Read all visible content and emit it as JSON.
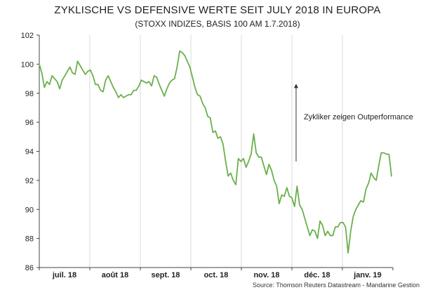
{
  "chart_data": {
    "type": "line",
    "title": "ZYKLISCHE VS DEFENSIVE WERTE SEIT JULY 2018 IN EUROPA",
    "subtitle": "(STOXX INDIZES, BASIS 100 AM 1.7.2018)",
    "source": "Source: Thomson Reuters Datastream - Mandarine Gestion",
    "annotation": "Zykliker zeigen Outperformance",
    "ylim": [
      86,
      102
    ],
    "yticks": [
      "86",
      "88",
      "90",
      "92",
      "94",
      "96",
      "98",
      "100",
      "102"
    ],
    "xlabels": [
      "juil. 18",
      "août 18",
      "sept. 18",
      "oct. 18",
      "nov. 18",
      "déc. 18",
      "janv. 19"
    ],
    "grid": "vertical",
    "line_color": "#6ab04c",
    "series": [
      {
        "values": [
          100.0,
          99.4,
          98.4,
          98.8,
          98.6,
          99.2,
          99.0,
          98.8,
          98.3,
          98.9,
          99.2,
          99.5,
          99.8,
          99.4,
          99.3,
          100.2,
          99.9,
          99.6,
          99.3,
          99.5,
          99.6,
          99.2,
          98.6,
          98.6,
          98.2,
          98.1,
          98.9,
          99.2,
          98.8,
          98.4,
          98.1,
          97.7,
          97.9,
          97.7,
          97.8,
          97.9,
          97.9,
          98.2,
          98.2,
          98.5,
          98.9,
          98.8,
          98.7,
          98.8,
          98.5,
          99.2,
          99.1,
          98.6,
          98.2,
          97.8,
          98.3,
          98.7,
          98.9,
          99.0,
          99.8,
          100.9,
          100.8,
          100.6,
          100.2,
          99.8,
          99.1,
          98.4,
          97.9,
          97.8,
          97.3,
          97.0,
          96.4,
          96.3,
          95.3,
          95.4,
          94.9,
          95.0,
          94.5,
          93.3,
          92.3,
          92.5,
          92.0,
          91.7,
          93.5,
          93.3,
          93.5,
          92.9,
          93.3,
          93.8,
          95.2,
          93.9,
          93.6,
          93.6,
          93.0,
          92.4,
          93.1,
          92.7,
          92.0,
          91.6,
          90.4,
          91.0,
          90.9,
          91.5,
          90.9,
          90.8,
          90.2,
          91.6,
          90.3,
          90.0,
          89.4,
          88.8,
          88.2,
          88.6,
          88.5,
          88.0,
          89.2,
          88.9,
          88.2,
          88.5,
          88.2,
          88.2,
          88.8,
          88.8,
          89.1,
          89.1,
          88.8,
          87.0,
          88.5,
          89.5,
          90.0,
          90.3,
          90.6,
          90.5,
          91.4,
          91.8,
          92.5,
          92.2,
          92.0,
          93.0,
          93.9,
          93.9,
          93.8,
          93.8,
          92.3
        ]
      }
    ]
  }
}
